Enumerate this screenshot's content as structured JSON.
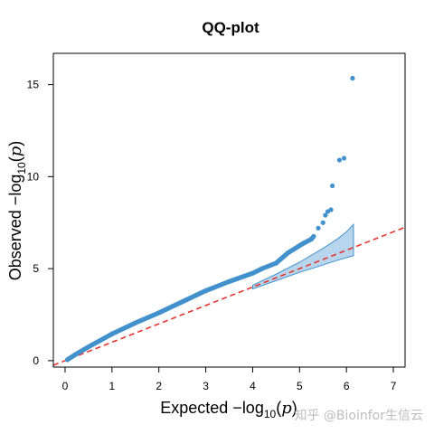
{
  "chart_data": {
    "type": "scatter",
    "title": "QQ-plot",
    "xlabel": {
      "main": "Expected  −log",
      "sub": "10",
      "paren_open": "(",
      "var": "p",
      "paren_close": ")"
    },
    "ylabel": {
      "main": "Observed  −log",
      "sub": "10",
      "paren_open": "(",
      "var": "p",
      "paren_close": ")"
    },
    "xlim": [
      -0.25,
      7.25
    ],
    "ylim": [
      -0.35,
      16.7
    ],
    "x_ticks": [
      "0",
      "1",
      "2",
      "3",
      "4",
      "5",
      "6",
      "7"
    ],
    "y_ticks": [
      "0",
      "5",
      "10",
      "15"
    ],
    "grid": false,
    "point_color": "#4391cc",
    "reference_line": {
      "slope": 1,
      "intercept": 0,
      "color": "#e5352e",
      "style": "dashed"
    },
    "confidence_band": {
      "color": "#4391cc",
      "x": [
        4.0,
        4.5,
        5.0,
        5.5,
        5.8,
        6.0,
        6.15
      ],
      "lower": [
        3.9,
        4.35,
        4.8,
        5.2,
        5.45,
        5.6,
        5.7
      ],
      "upper": [
        4.1,
        4.7,
        5.35,
        6.1,
        6.6,
        7.0,
        7.4
      ]
    },
    "points": [
      [
        0.05,
        0.05
      ],
      [
        0.2,
        0.3
      ],
      [
        0.5,
        0.75
      ],
      [
        1.0,
        1.45
      ],
      [
        1.5,
        2.05
      ],
      [
        2.0,
        2.6
      ],
      [
        2.5,
        3.2
      ],
      [
        3.0,
        3.8
      ],
      [
        3.5,
        4.3
      ],
      [
        4.0,
        4.75
      ],
      [
        4.2,
        5.0
      ],
      [
        4.5,
        5.3
      ],
      [
        4.75,
        5.85
      ],
      [
        5.0,
        6.25
      ],
      [
        5.1,
        6.4
      ],
      [
        5.25,
        6.6
      ],
      [
        5.3,
        6.75
      ],
      [
        5.4,
        7.2
      ],
      [
        5.5,
        7.5
      ],
      [
        5.55,
        7.9
      ],
      [
        5.6,
        8.1
      ],
      [
        5.67,
        8.2
      ],
      [
        5.7,
        9.5
      ],
      [
        5.85,
        10.9
      ],
      [
        5.95,
        11.0
      ],
      [
        6.13,
        15.35
      ]
    ]
  },
  "watermark": "知乎 @Bioinfor生信云"
}
